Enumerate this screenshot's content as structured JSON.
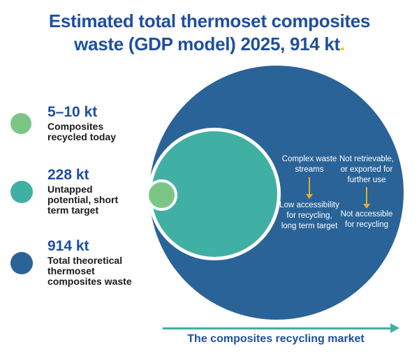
{
  "title": {
    "line1": "Estimated total thermoset composites",
    "line2": "waste (GDP model) 2025, 914 kt",
    "end_dot": "."
  },
  "legend": {
    "items": [
      {
        "value": "5–10 kt",
        "label_lines": [
          "Composites",
          "recycled today"
        ],
        "color": "#7CC685"
      },
      {
        "value": "228 kt",
        "label_lines": [
          "Untapped",
          "potential, short",
          "term target"
        ],
        "color": "#41B0A4"
      },
      {
        "value": "914 kt",
        "label_lines": [
          "Total theoretical",
          "thermoset",
          "composites waste"
        ],
        "color": "#2A6397"
      }
    ]
  },
  "diagram": {
    "annotations": {
      "col1": {
        "top_lines": [
          "Complex waste",
          "streams"
        ],
        "bottom_lines": [
          "Low accessibility",
          "for recycling,",
          "long term target"
        ]
      },
      "col2": {
        "top_lines": [
          "Not retrievable,",
          "or exported for",
          "further use"
        ],
        "bottom_lines": [
          "Not accessible",
          "for recycling"
        ]
      }
    },
    "axis_label": "The composites recycling market"
  },
  "chart_data": {
    "type": "area",
    "subtype": "nested-proportional-circles",
    "title": "Estimated total thermoset composites waste (GDP model) 2025, 914 kt.",
    "unit": "kt",
    "total_kt": 914,
    "circles": [
      {
        "label": "Total theoretical thermoset composites waste",
        "value_kt": "914",
        "color": "#2A6397"
      },
      {
        "label": "Untapped potential, short term target",
        "value_kt": "228",
        "color": "#41B0A4"
      },
      {
        "label": "Composites recycled today",
        "value_kt": "5–10",
        "color": "#7CC685"
      }
    ],
    "annotations": [
      {
        "cause": "Complex waste streams",
        "effect": "Low accessibility for recycling, long term target"
      },
      {
        "cause": "Not retrievable, or exported for further use",
        "effect": "Not accessible for recycling"
      }
    ],
    "x_axis_label": "The composites recycling market",
    "legend_position": "left",
    "accent_colors": {
      "title_dot": "#F2C018",
      "annotation_arrows": "#DFAF35",
      "market_arrow": "#41B0A4"
    }
  }
}
